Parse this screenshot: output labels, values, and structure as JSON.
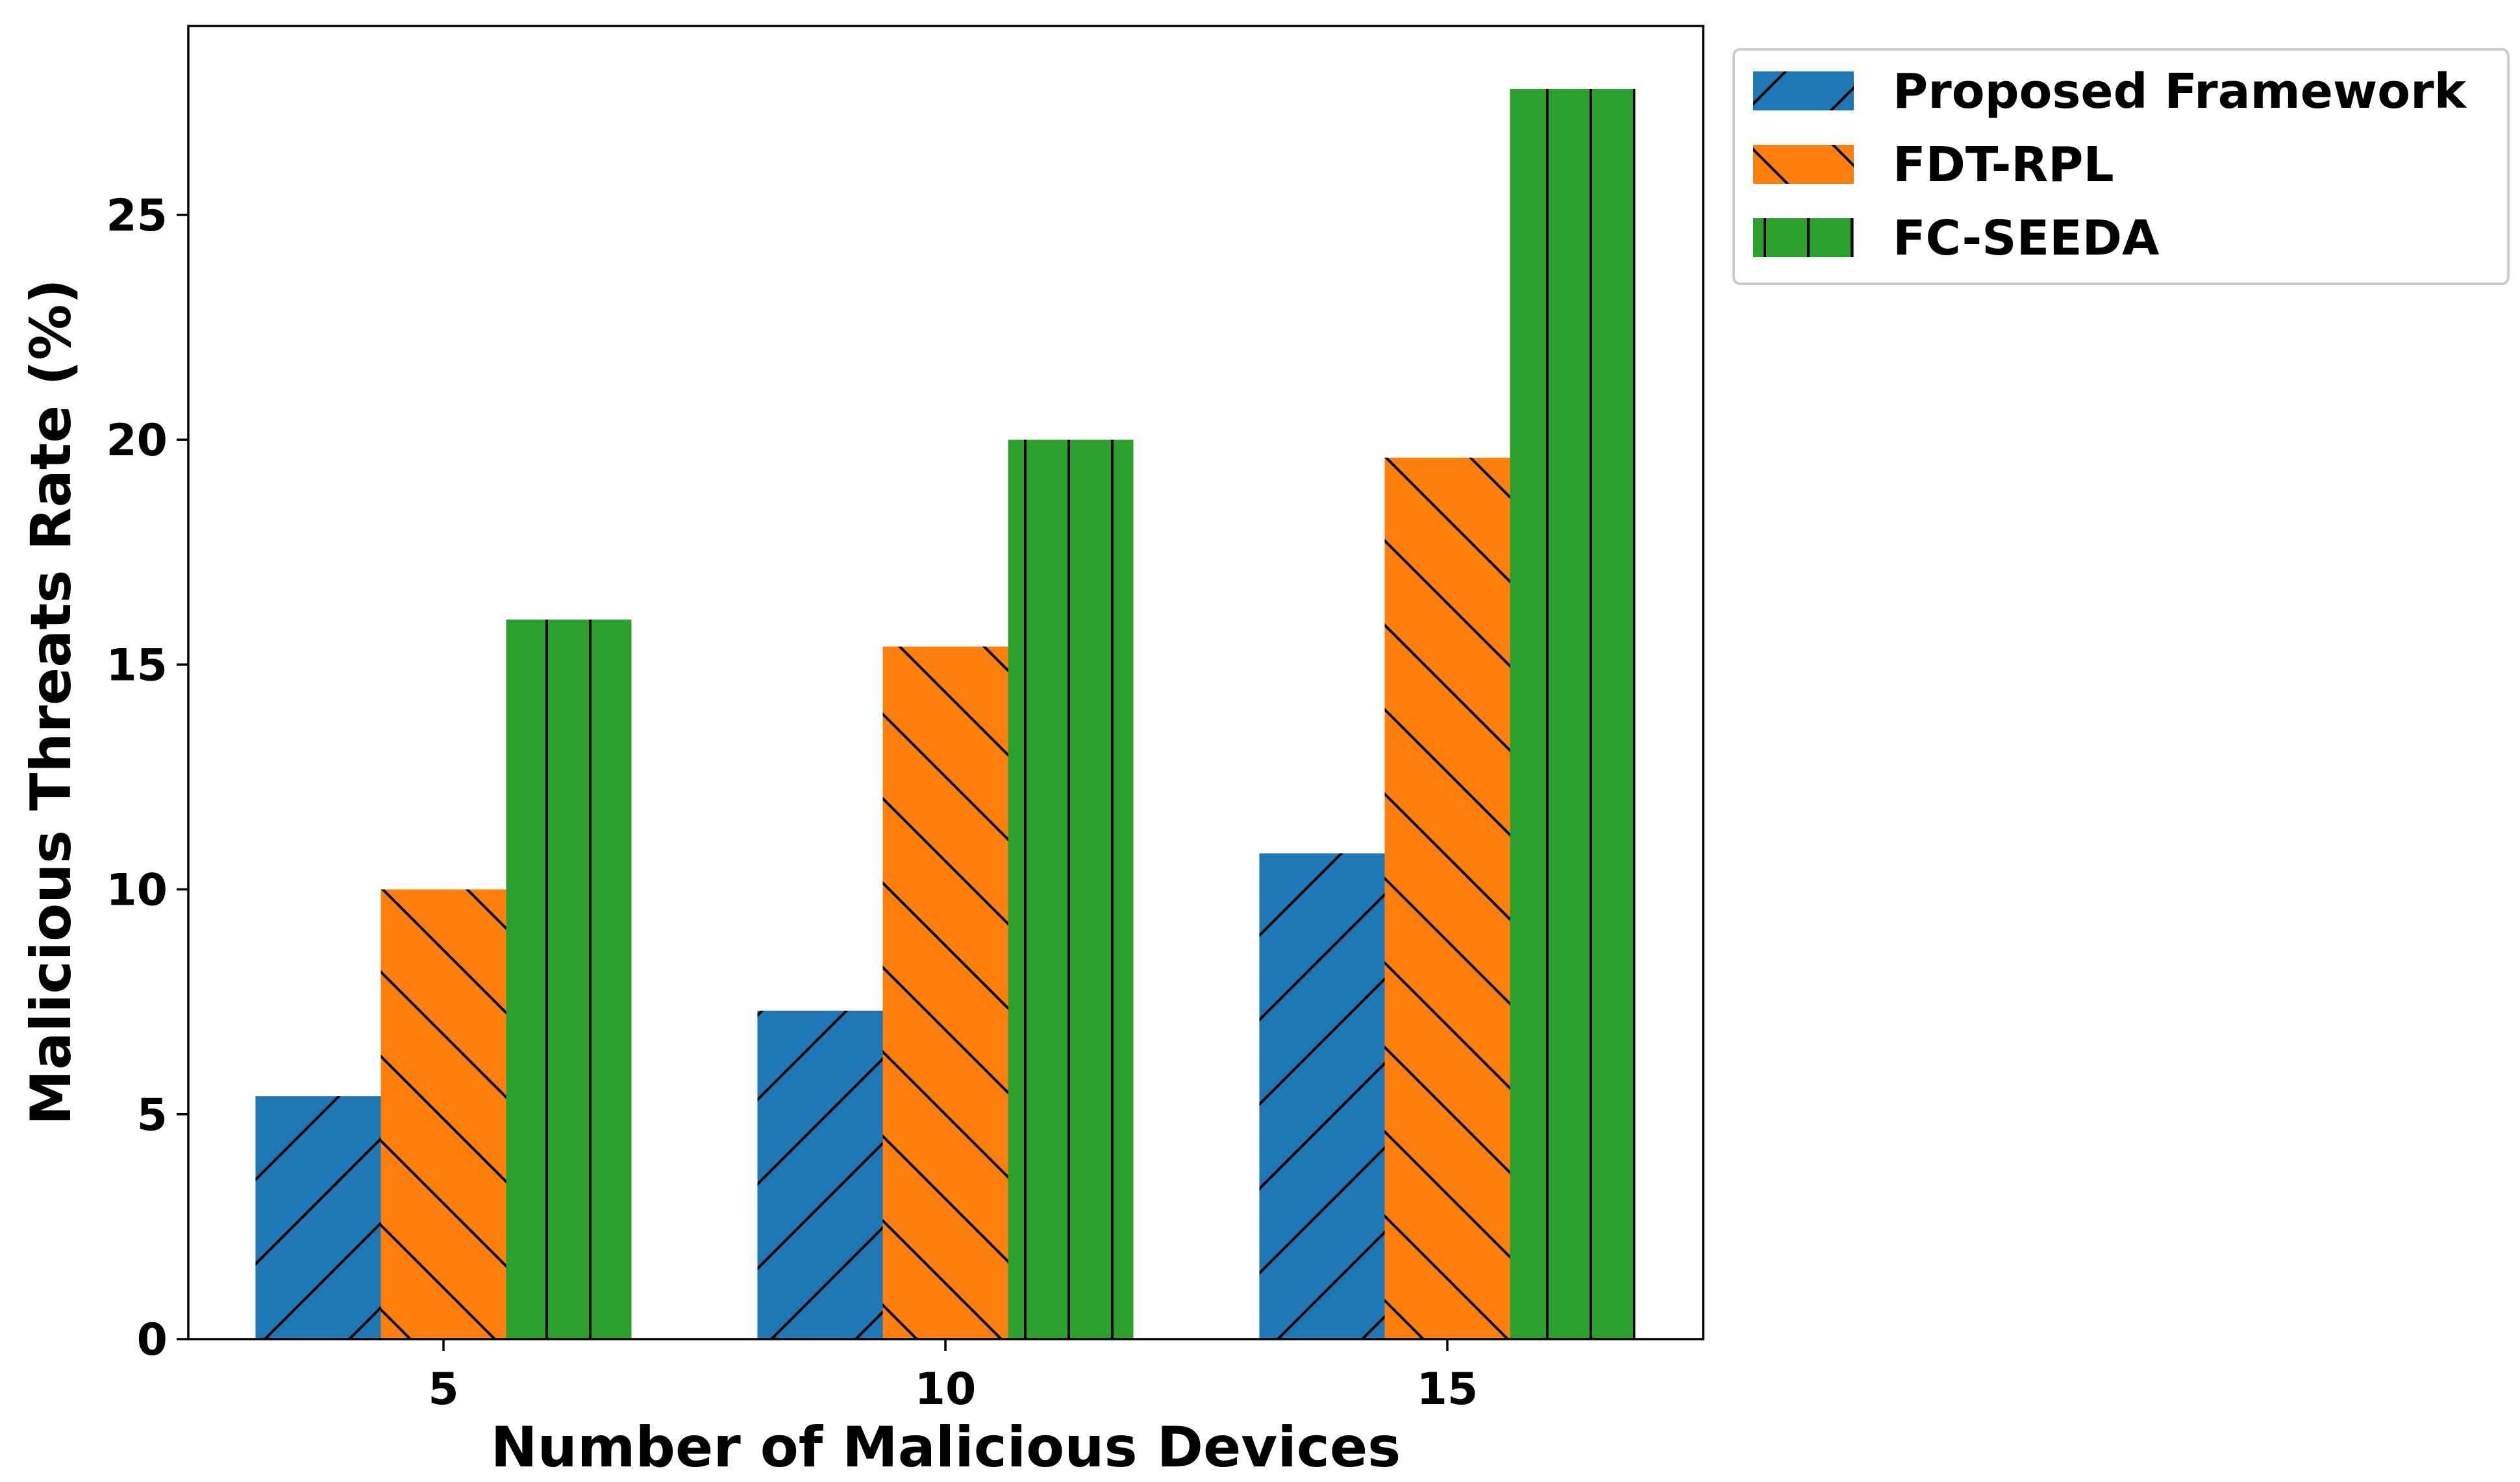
{
  "chart_data": {
    "type": "bar",
    "xlabel": "Number of Malicious Devices",
    "ylabel": "Malicious Threats Rate (%)",
    "categories": [
      "5",
      "10",
      "15"
    ],
    "ylim": [
      0,
      29.2
    ],
    "yticks": [
      0,
      5,
      10,
      15,
      20,
      25
    ],
    "grid": false,
    "legend_position": "outside-top-right",
    "series": [
      {
        "name": "Proposed Framework",
        "values": [
          5.4,
          7.3,
          10.8
        ],
        "color": "#1f77b4",
        "hatch": "/"
      },
      {
        "name": "FDT-RPL",
        "values": [
          10.0,
          15.4,
          19.6
        ],
        "color": "#ff7f0e",
        "hatch": "\\"
      },
      {
        "name": "FC-SEEDA",
        "values": [
          16.0,
          20.0,
          27.8
        ],
        "color": "#2ca02c",
        "hatch": "|"
      }
    ]
  }
}
